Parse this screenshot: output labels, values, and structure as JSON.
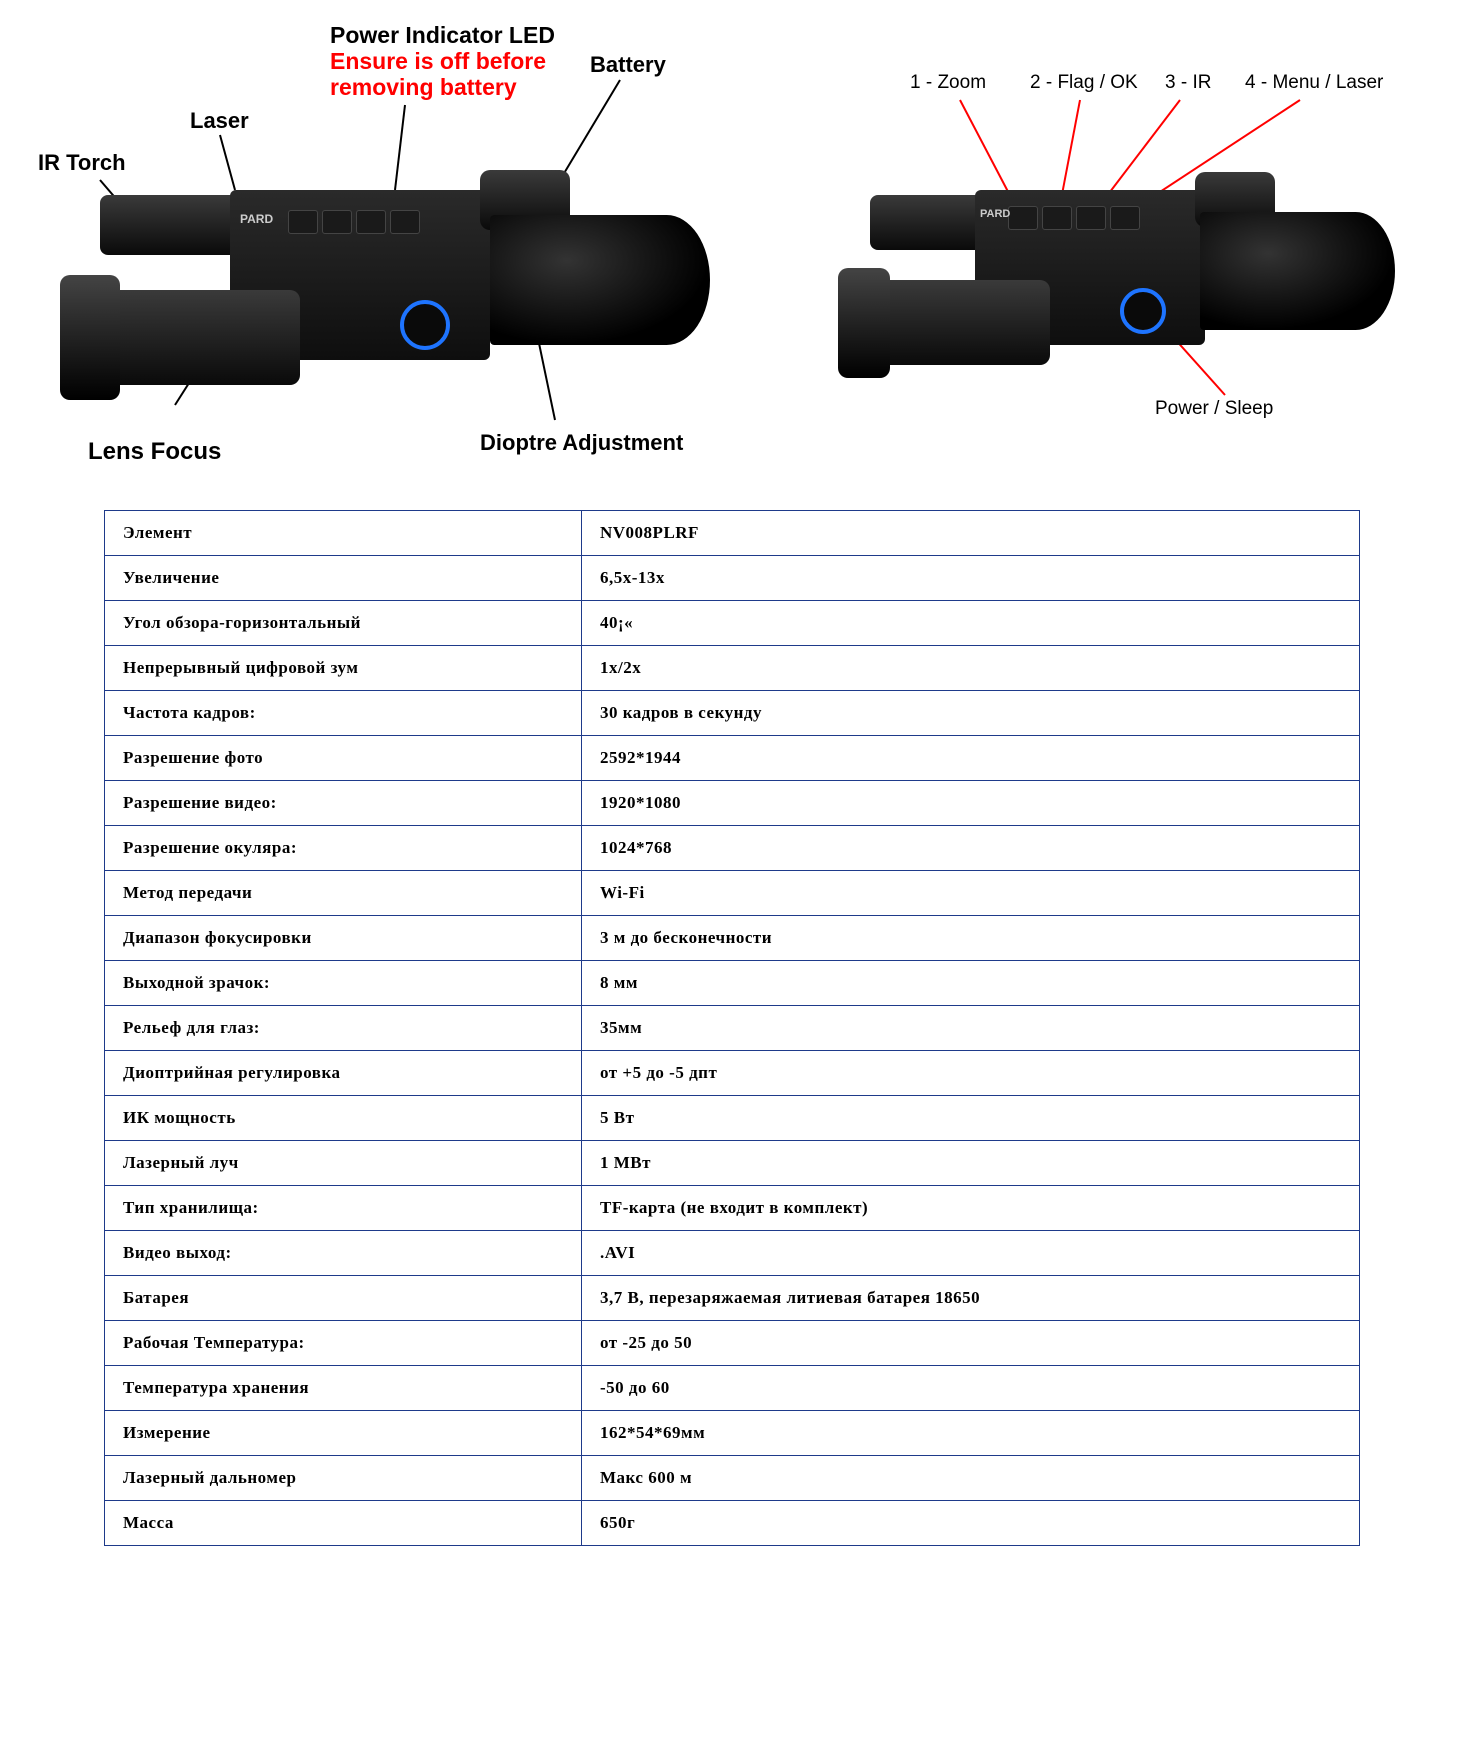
{
  "left": {
    "ir_torch": "IR Torch",
    "laser": "Laser",
    "pwr_led_title": "Power Indicator LED",
    "pwr_led_warn1": "Ensure is off before",
    "pwr_led_warn2": "removing battery",
    "battery": "Battery",
    "lens_focus": "Lens Focus",
    "dioptre": "Dioptre Adjustment",
    "brand": "PARD"
  },
  "right": {
    "zoom": "1 - Zoom",
    "flag": "2 - Flag / OK",
    "ir": "3 - IR",
    "menu": "4 - Menu / Laser",
    "power": "Power / Sleep",
    "brand": "PARD"
  },
  "colors": {
    "leader_black": "#000000",
    "leader_red": "#ff0000",
    "accent_ring": "#1e74ff",
    "table_border": "#1e3a8a"
  },
  "specs": {
    "rows": [
      {
        "k": "Элемент",
        "v": "NV008PLRF"
      },
      {
        "k": "Увеличение",
        "v": "6,5x-13x"
      },
      {
        "k": "Угол обзора-горизонтальный",
        "v": "40¡«"
      },
      {
        "k": "Непрерывный цифровой зум",
        "v": "1x/2x"
      },
      {
        "k": "Частота кадров:",
        "v": "30 кадров в секунду"
      },
      {
        "k": "Разрешение фото",
        "v": "2592*1944"
      },
      {
        "k": "Разрешение видео:",
        "v": "1920*1080"
      },
      {
        "k": "Разрешение окуляра:",
        "v": "1024*768"
      },
      {
        "k": "Метод передачи",
        "v": "Wi-Fi"
      },
      {
        "k": "Диапазон фокусировки",
        "v": "3 м до бесконечности"
      },
      {
        "k": "Выходной зрачок:",
        "v": "8 мм"
      },
      {
        "k": "Рельеф для глаз:",
        "v": "35мм"
      },
      {
        "k": "Диоптрийная регулировка",
        "v": "от +5 до -5 дпт"
      },
      {
        "k": "ИК мощность",
        "v": "5 Вт"
      },
      {
        "k": "Лазерный луч",
        "v": "1 МВт"
      },
      {
        "k": "Тип хранилища:",
        "v": "TF-карта (не входит в комплект)"
      },
      {
        "k": "Видео выход:",
        "v": ".AVI"
      },
      {
        "k": "Батарея",
        "v": "3,7 В, перезаряжаемая литиевая батарея 18650"
      },
      {
        "k": "Рабочая Температура:",
        "v": "от -25 до 50"
      },
      {
        "k": "Температура хранения",
        "v": "-50 до 60"
      },
      {
        "k": "Измерение",
        "v": "162*54*69мм"
      },
      {
        "k": "Лазерный дальномер",
        "v": "Макс 600 м"
      },
      {
        "k": "Масса",
        "v": "650г"
      }
    ]
  }
}
